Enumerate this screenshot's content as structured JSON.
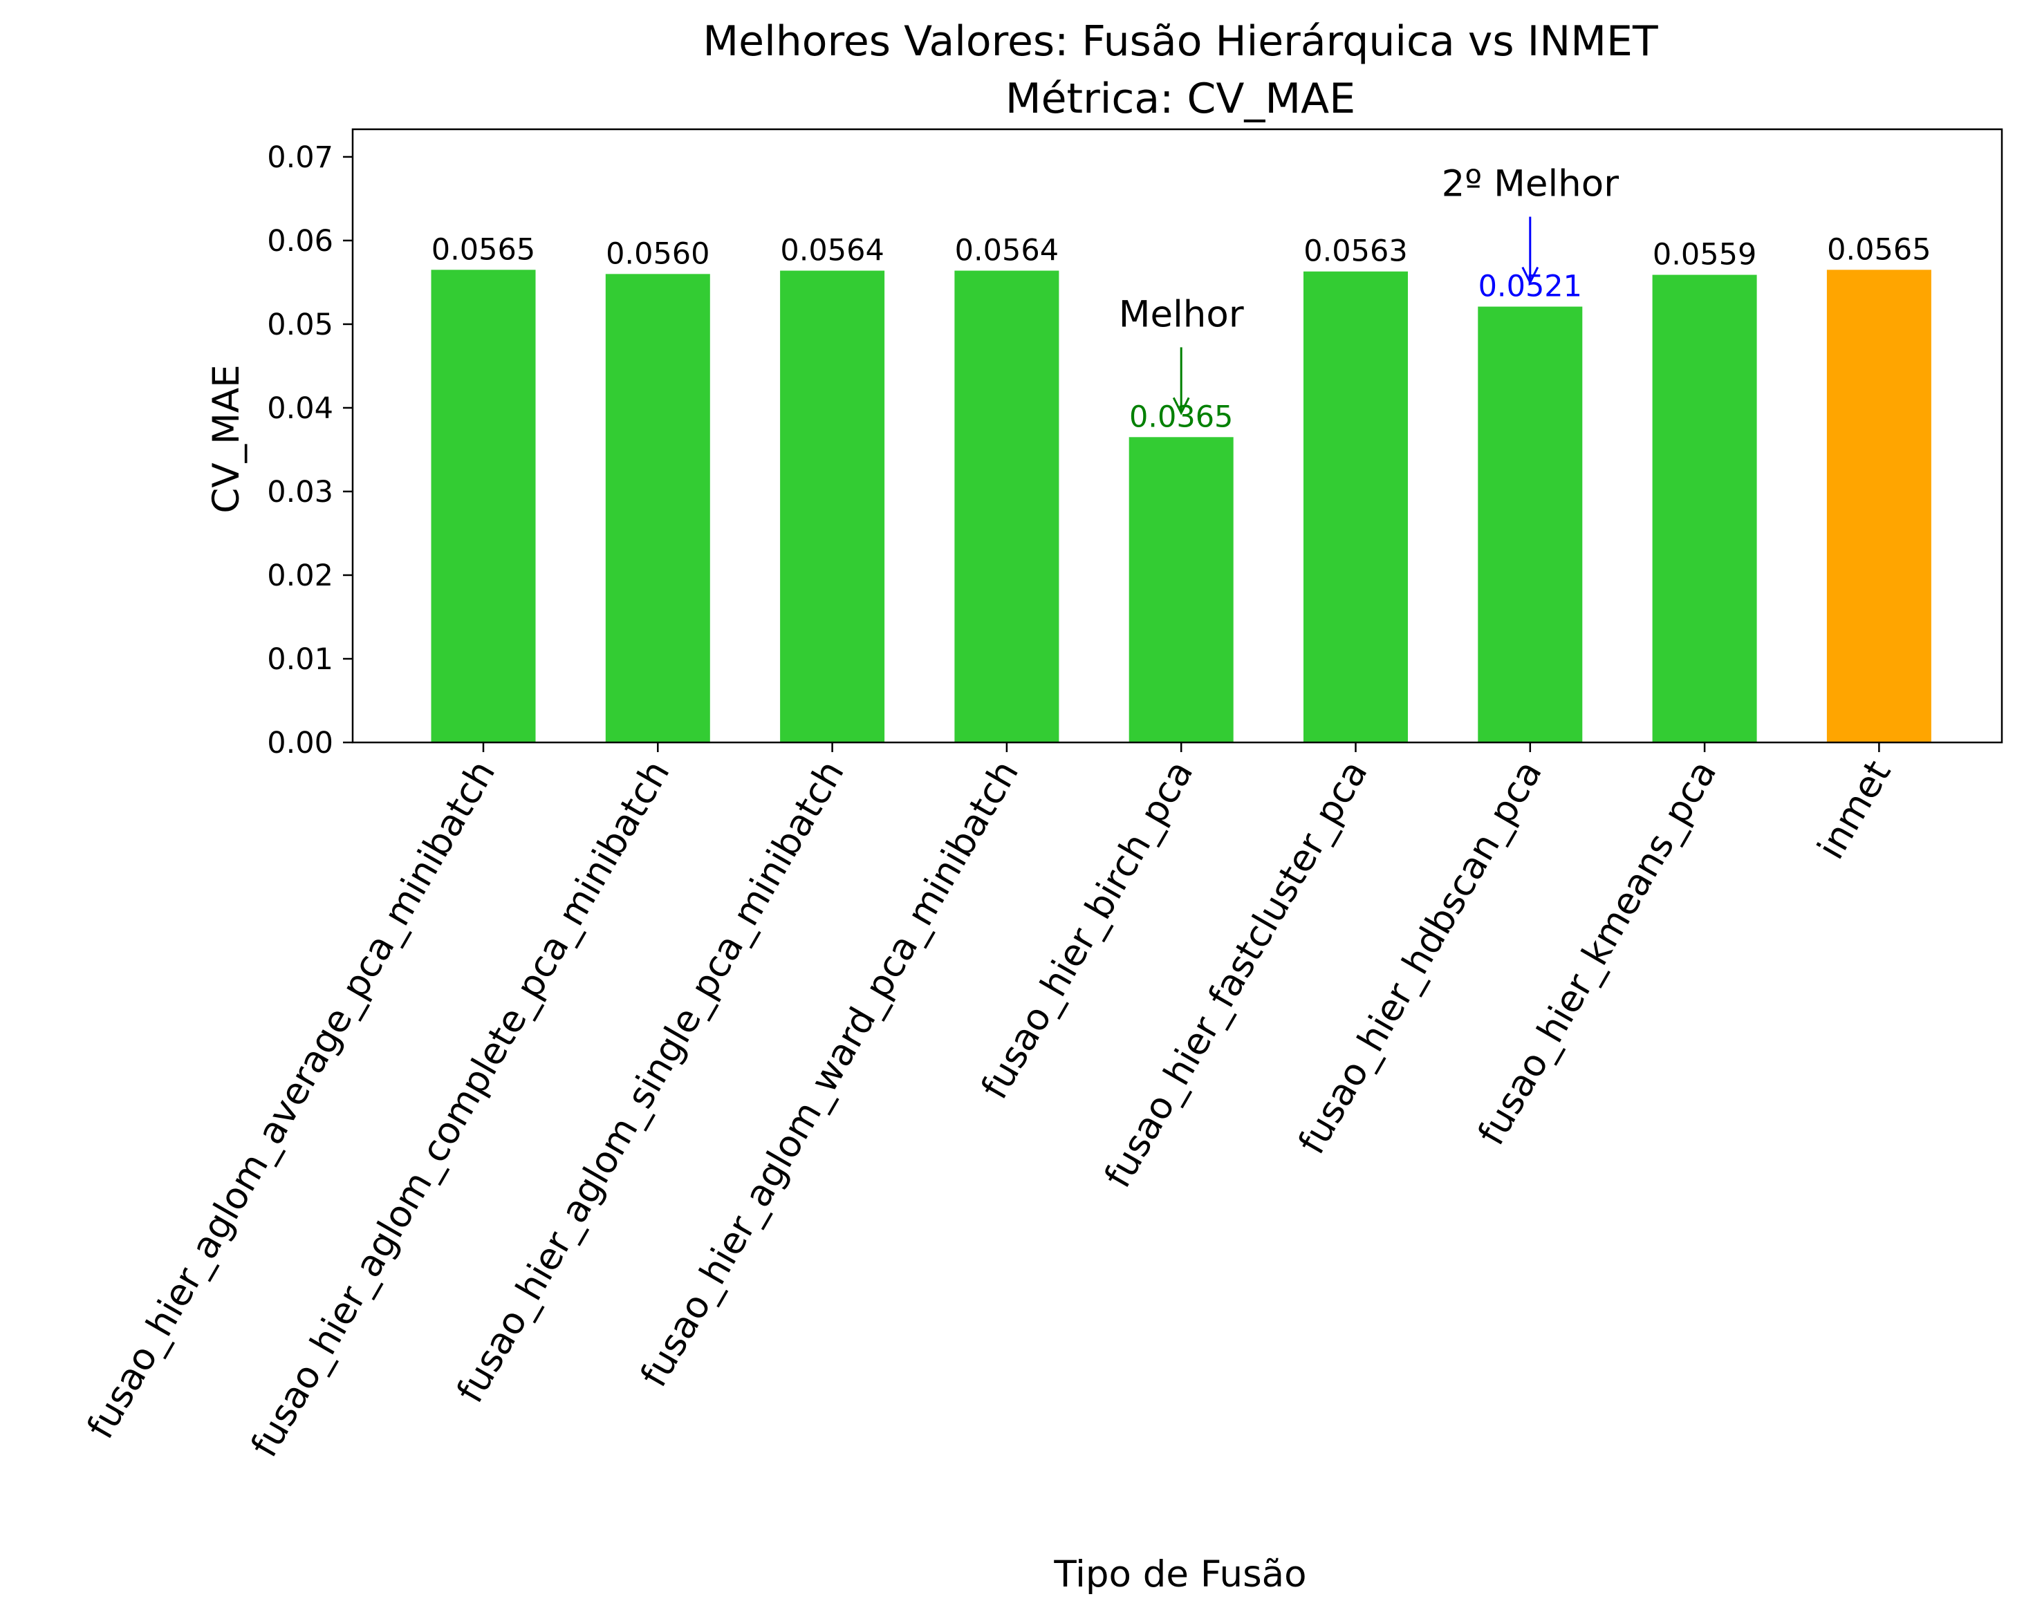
{
  "chart_data": {
    "type": "bar",
    "title": "Melhores Valores: Fusão Hierárquica vs INMET",
    "subtitle": "Métrica: CV_MAE",
    "xlabel": "Tipo de Fusão",
    "ylabel": "CV_MAE",
    "categories": [
      "fusao_hier_aglom_average_pca_minibatch",
      "fusao_hier_aglom_complete_pca_minibatch",
      "fusao_hier_aglom_single_pca_minibatch",
      "fusao_hier_aglom_ward_pca_minibatch",
      "fusao_hier_birch_pca",
      "fusao_hier_fastcluster_pca",
      "fusao_hier_hdbscan_pca",
      "fusao_hier_kmeans_pca",
      "inmet"
    ],
    "values": [
      0.0565,
      0.056,
      0.0564,
      0.0564,
      0.0365,
      0.0563,
      0.0521,
      0.0559,
      0.0565
    ],
    "value_labels": [
      "0.0565",
      "0.0560",
      "0.0564",
      "0.0564",
      "0.0365",
      "0.0563",
      "0.0521",
      "0.0559",
      "0.0565"
    ],
    "bar_colors": [
      "#33cc33",
      "#33cc33",
      "#33cc33",
      "#33cc33",
      "#33cc33",
      "#33cc33",
      "#33cc33",
      "#33cc33",
      "#ffa500"
    ],
    "value_label_colors": [
      "#000000",
      "#000000",
      "#000000",
      "#000000",
      "#008000",
      "#000000",
      "#0000ff",
      "#000000",
      "#000000"
    ],
    "ylim": [
      0,
      0.0733
    ],
    "yticks": [
      "0.00",
      "0.01",
      "0.02",
      "0.03",
      "0.04",
      "0.05",
      "0.06",
      "0.07"
    ],
    "grid": false,
    "annotations": [
      {
        "text": "Melhor",
        "target_index": 4,
        "color": "#008000"
      },
      {
        "text": "2º Melhor",
        "target_index": 6,
        "color": "#0000ff"
      }
    ]
  }
}
